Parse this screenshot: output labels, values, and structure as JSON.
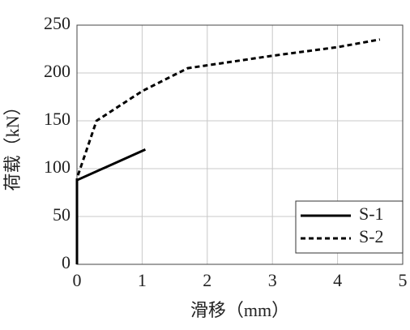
{
  "chart_data": {
    "type": "line",
    "x_label": "滑移（mm）",
    "y_label": "荷载（kN）",
    "xlim": [
      0,
      5
    ],
    "xticks": [
      0,
      1,
      2,
      3,
      4,
      5
    ],
    "ylim": [
      0,
      250
    ],
    "yticks": [
      0,
      50,
      100,
      150,
      200,
      250
    ],
    "grid": true,
    "legend": "lower right",
    "series": [
      {
        "name": "S-1",
        "color": "#000000",
        "style": "solid",
        "x": [
          0,
          0,
          1.05
        ],
        "values": [
          0,
          88,
          120
        ]
      },
      {
        "name": "S-2",
        "color": "#000000",
        "style": "dashed",
        "x": [
          0,
          0,
          0.3,
          1,
          1.7,
          2,
          3,
          4,
          4.65
        ],
        "values": [
          0,
          90,
          150,
          181,
          205,
          208,
          218,
          227,
          235
        ]
      }
    ]
  }
}
